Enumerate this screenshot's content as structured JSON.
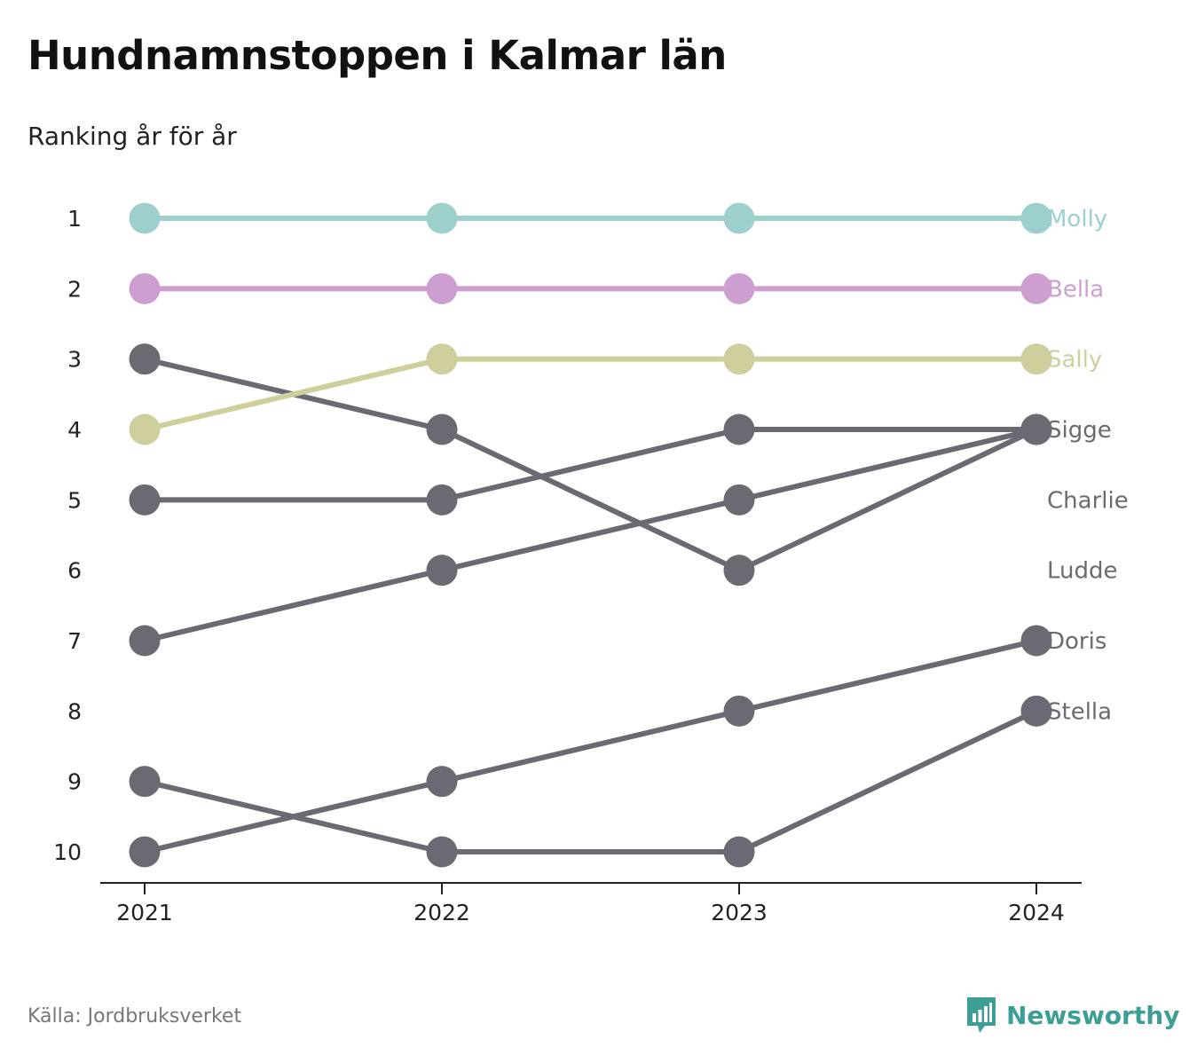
{
  "title": "Hundnamnstoppen i Kalmar län",
  "subtitle": "Ranking år för år",
  "source": "Källa: Jordbruksverket",
  "brand": {
    "name": "Newsworthy",
    "logo_icon": "bar-chart-bubble-icon",
    "color": "#3d9e96"
  },
  "chart_data": {
    "type": "line",
    "subtype": "bump",
    "x": [
      "2021",
      "2022",
      "2023",
      "2024"
    ],
    "y_ticks": [
      1,
      2,
      3,
      4,
      5,
      6,
      7,
      8,
      9,
      10
    ],
    "ylim": [
      1,
      10
    ],
    "y_inverted": true,
    "grid": false,
    "series": [
      {
        "name": "Molly",
        "color": "#9dcfcd",
        "values": [
          1,
          1,
          1,
          1
        ]
      },
      {
        "name": "Bella",
        "color": "#cd9fd0",
        "values": [
          2,
          2,
          2,
          2
        ]
      },
      {
        "name": "Sally",
        "color": "#cfcf9d",
        "values": [
          4,
          3,
          3,
          3
        ]
      },
      {
        "name": "Sigge",
        "color": "#6b6a72",
        "values": [
          7,
          6,
          5,
          4
        ]
      },
      {
        "name": "Charlie",
        "color": "#6b6a72",
        "values": [
          3,
          4,
          6,
          4
        ]
      },
      {
        "name": "Ludde",
        "color": "#6b6a72",
        "values": [
          5,
          5,
          4,
          4
        ]
      },
      {
        "name": "Doris",
        "color": "#6b6a72",
        "values": [
          10,
          9,
          8,
          7
        ]
      },
      {
        "name": "Stella",
        "color": "#6b6a72",
        "values": [
          9,
          10,
          10,
          8
        ]
      }
    ]
  }
}
